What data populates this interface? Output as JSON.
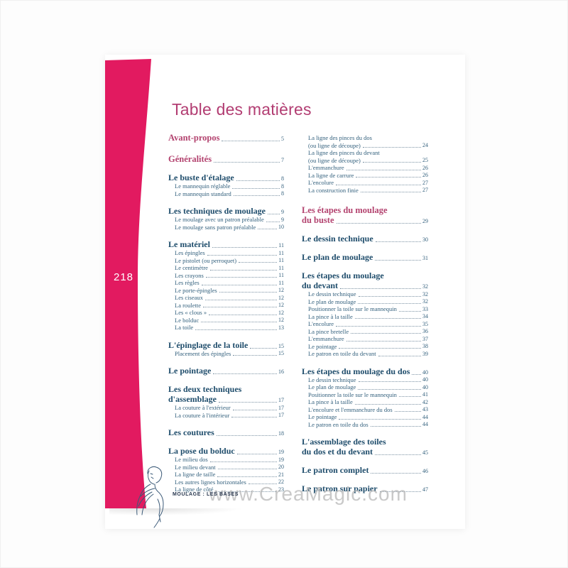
{
  "page_number": "218",
  "title": "Table des matières",
  "footer": {
    "book_label": "MOULAGE : LES BASES",
    "watermark": "www.CreaMagic.com"
  },
  "colors": {
    "band_pink": "#e21a60",
    "title_pink": "#b23d72",
    "part_heading_pink": "#b3436f",
    "section_navy": "#1e4c6b",
    "sub_navy": "#33607d"
  },
  "icons": {
    "figure_sketch": "woman-bust-sketch-icon"
  },
  "toc": {
    "left_column": [
      {
        "type": "part",
        "lines": [
          "Avant-propos"
        ],
        "page": "5"
      },
      {
        "type": "part",
        "lines": [
          "Généralités"
        ],
        "page": "7"
      },
      {
        "type": "section",
        "lines": [
          "Le buste d'étalage"
        ],
        "page": "8"
      },
      {
        "type": "sub",
        "lines": [
          "Le mannequin réglable"
        ],
        "page": "8"
      },
      {
        "type": "sub",
        "lines": [
          "Le mannequin standard"
        ],
        "page": "8"
      },
      {
        "type": "section",
        "lines": [
          "Les techniques de moulage"
        ],
        "page": "9"
      },
      {
        "type": "sub",
        "lines": [
          "Le moulage avec un patron préalable"
        ],
        "page": "9"
      },
      {
        "type": "sub",
        "lines": [
          "Le moulage sans patron préalable"
        ],
        "page": "10"
      },
      {
        "type": "section",
        "lines": [
          "Le matériel"
        ],
        "page": "11"
      },
      {
        "type": "sub",
        "lines": [
          "Les épingles"
        ],
        "page": "11"
      },
      {
        "type": "sub",
        "lines": [
          "Le pistolet (ou perroquet)"
        ],
        "page": "11"
      },
      {
        "type": "sub",
        "lines": [
          "Le centimètre"
        ],
        "page": "11"
      },
      {
        "type": "sub",
        "lines": [
          "Les crayons"
        ],
        "page": "11"
      },
      {
        "type": "sub",
        "lines": [
          "Les règles"
        ],
        "page": "11"
      },
      {
        "type": "sub",
        "lines": [
          "Le porte-épingles"
        ],
        "page": "12"
      },
      {
        "type": "sub",
        "lines": [
          "Les ciseaux"
        ],
        "page": "12"
      },
      {
        "type": "sub",
        "lines": [
          "La roulette"
        ],
        "page": "12"
      },
      {
        "type": "sub",
        "lines": [
          "Les « clous »"
        ],
        "page": "12"
      },
      {
        "type": "sub",
        "lines": [
          "Le bolduc"
        ],
        "page": "12"
      },
      {
        "type": "sub",
        "lines": [
          "La toile"
        ],
        "page": "13"
      },
      {
        "type": "section",
        "lines": [
          "L'épinglage de la toile"
        ],
        "page": "15"
      },
      {
        "type": "sub",
        "lines": [
          "Placement des épingles"
        ],
        "page": "15"
      },
      {
        "type": "section",
        "lines": [
          "Le pointage"
        ],
        "page": "16"
      },
      {
        "type": "section",
        "lines": [
          "Les deux techniques",
          "d'assemblage"
        ],
        "page": "17"
      },
      {
        "type": "sub",
        "lines": [
          "La couture à l'extérieur"
        ],
        "page": "17"
      },
      {
        "type": "sub",
        "lines": [
          "La couture à l'intérieur"
        ],
        "page": "17"
      },
      {
        "type": "section",
        "lines": [
          "Les coutures"
        ],
        "page": "18"
      },
      {
        "type": "section",
        "lines": [
          "La pose du bolduc"
        ],
        "page": "19"
      },
      {
        "type": "sub",
        "lines": [
          "Le milieu dos"
        ],
        "page": "19"
      },
      {
        "type": "sub",
        "lines": [
          "Le milieu devant"
        ],
        "page": "20"
      },
      {
        "type": "sub",
        "lines": [
          "La ligne de taille"
        ],
        "page": "21"
      },
      {
        "type": "sub",
        "lines": [
          "Les autres lignes horizontales"
        ],
        "page": "22"
      },
      {
        "type": "sub",
        "lines": [
          "La ligne de côté"
        ],
        "page": "23"
      }
    ],
    "right_column": [
      {
        "type": "sub",
        "lines": [
          "La ligne des pinces du dos",
          "(ou ligne de découpe)"
        ],
        "page": "24"
      },
      {
        "type": "sub",
        "lines": [
          "La ligne des pinces du devant",
          "(ou ligne de découpe)"
        ],
        "page": "25"
      },
      {
        "type": "sub",
        "lines": [
          "L'emmanchure"
        ],
        "page": "26"
      },
      {
        "type": "sub",
        "lines": [
          "La ligne de carrure"
        ],
        "page": "26"
      },
      {
        "type": "sub",
        "lines": [
          "L'encolure"
        ],
        "page": "27"
      },
      {
        "type": "sub",
        "lines": [
          "La construction finie"
        ],
        "page": "27"
      },
      {
        "type": "part",
        "lines": [
          "Les étapes du moulage",
          "du buste"
        ],
        "page": "29"
      },
      {
        "type": "section",
        "lines": [
          "Le dessin technique"
        ],
        "page": "30"
      },
      {
        "type": "section",
        "lines": [
          "Le plan de moulage"
        ],
        "page": "31"
      },
      {
        "type": "section",
        "lines": [
          "Les étapes du moulage",
          "du devant"
        ],
        "page": "32"
      },
      {
        "type": "sub",
        "lines": [
          "Le dessin technique"
        ],
        "page": "32"
      },
      {
        "type": "sub",
        "lines": [
          "Le plan de moulage"
        ],
        "page": "32"
      },
      {
        "type": "sub",
        "lines": [
          "Positionner la toile sur le mannequin"
        ],
        "page": "33"
      },
      {
        "type": "sub",
        "lines": [
          "La pince à la taille"
        ],
        "page": "34"
      },
      {
        "type": "sub",
        "lines": [
          "L'encolure"
        ],
        "page": "35"
      },
      {
        "type": "sub",
        "lines": [
          "La pince bretelle"
        ],
        "page": "36"
      },
      {
        "type": "sub",
        "lines": [
          "L'emmanchure"
        ],
        "page": "37"
      },
      {
        "type": "sub",
        "lines": [
          "Le pointage"
        ],
        "page": "38"
      },
      {
        "type": "sub",
        "lines": [
          "Le patron en toile du devant"
        ],
        "page": "39"
      },
      {
        "type": "section",
        "lines": [
          "Les étapes du moulage du dos"
        ],
        "page": "40"
      },
      {
        "type": "sub",
        "lines": [
          "Le dessin technique"
        ],
        "page": "40"
      },
      {
        "type": "sub",
        "lines": [
          "Le plan de moulage"
        ],
        "page": "40"
      },
      {
        "type": "sub",
        "lines": [
          "Positionner la toile sur le mannequin"
        ],
        "page": "41"
      },
      {
        "type": "sub",
        "lines": [
          "La pince à la taille"
        ],
        "page": "42"
      },
      {
        "type": "sub",
        "lines": [
          "L'encolure et l'emmanchure du dos"
        ],
        "page": "43"
      },
      {
        "type": "sub",
        "lines": [
          "Le pointage"
        ],
        "page": "44"
      },
      {
        "type": "sub",
        "lines": [
          "Le patron en toile du dos"
        ],
        "page": "44"
      },
      {
        "type": "section",
        "lines": [
          "L'assemblage des toiles",
          "du dos et du devant"
        ],
        "page": "45"
      },
      {
        "type": "section",
        "lines": [
          "Le patron complet"
        ],
        "page": "46"
      },
      {
        "type": "section",
        "lines": [
          "Le patron sur papier"
        ],
        "page": "47"
      }
    ]
  }
}
